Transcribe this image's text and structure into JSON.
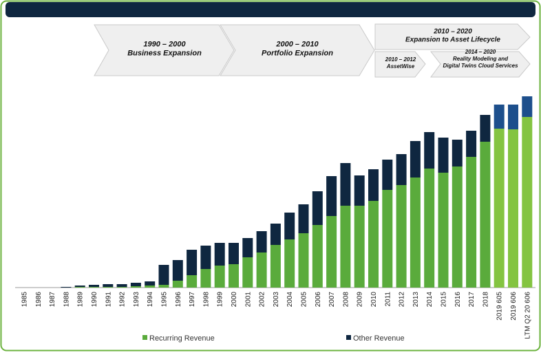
{
  "chart_data": {
    "type": "stacked-bar",
    "categories": [
      "1985",
      "1986",
      "1987",
      "1988",
      "1989",
      "1990",
      "1991",
      "1992",
      "1993",
      "1994",
      "1995",
      "1996",
      "1997",
      "1998",
      "1999",
      "2000",
      "2001",
      "2002",
      "2003",
      "2004",
      "2005",
      "2006",
      "2007",
      "2008",
      "2009",
      "2010",
      "2011",
      "2012",
      "2013",
      "2014",
      "2015",
      "2016",
      "2017",
      "2018",
      "2019 605",
      "2019 606",
      "LTM Q2 20 606"
    ],
    "ylim": [
      0,
      290
    ],
    "series": [
      {
        "name": "Recurring Revenue",
        "color": "#5aab3c",
        "colors": [
          "#5aab3c",
          "#5aab3c",
          "#5aab3c",
          "#5aab3c",
          "#5aab3c",
          "#5aab3c",
          "#5aab3c",
          "#5aab3c",
          "#5aab3c",
          "#5aab3c",
          "#5aab3c",
          "#5aab3c",
          "#5aab3c",
          "#5aab3c",
          "#5aab3c",
          "#5aab3c",
          "#5aab3c",
          "#5aab3c",
          "#5aab3c",
          "#5aab3c",
          "#5aab3c",
          "#5aab3c",
          "#5aab3c",
          "#5aab3c",
          "#5aab3c",
          "#5aab3c",
          "#5aab3c",
          "#5aab3c",
          "#5aab3c",
          "#5aab3c",
          "#5aab3c",
          "#5aab3c",
          "#5aab3c",
          "#5aab3c",
          "#84c441",
          "#84c441",
          "#84c441"
        ],
        "values": [
          0,
          0,
          0,
          0,
          1,
          1,
          1,
          1,
          2,
          3,
          4,
          10,
          18,
          27,
          32,
          34,
          44,
          51,
          62,
          70,
          79,
          91,
          104,
          119,
          119,
          126,
          142,
          149,
          160,
          173,
          167,
          176,
          190,
          212,
          231,
          230,
          248
        ]
      },
      {
        "name": "Other Revenue",
        "color": "#0f2740",
        "colors": [
          "#0f2740",
          "#0f2740",
          "#0f2740",
          "#0f2740",
          "#0f2740",
          "#0f2740",
          "#0f2740",
          "#0f2740",
          "#0f2740",
          "#0f2740",
          "#0f2740",
          "#0f2740",
          "#0f2740",
          "#0f2740",
          "#0f2740",
          "#0f2740",
          "#0f2740",
          "#0f2740",
          "#0f2740",
          "#0f2740",
          "#0f2740",
          "#0f2740",
          "#0f2740",
          "#0f2740",
          "#0f2740",
          "#0f2740",
          "#0f2740",
          "#0f2740",
          "#0f2740",
          "#0f2740",
          "#0f2740",
          "#0f2740",
          "#0f2740",
          "#0f2740",
          "#1d4f8c",
          "#1d4f8c",
          "#1d4f8c"
        ],
        "values": [
          0,
          0,
          0,
          1,
          2,
          3,
          4,
          4,
          5,
          6,
          29,
          30,
          37,
          34,
          33,
          31,
          28,
          31,
          31,
          39,
          42,
          49,
          58,
          62,
          44,
          46,
          44,
          45,
          53,
          53,
          51,
          39,
          38,
          39,
          35,
          36,
          30
        ]
      }
    ],
    "phases": [
      {
        "lines": [
          "1990 – 2000",
          "Business Expansion"
        ]
      },
      {
        "lines": [
          "2000 – 2010",
          "Portfolio Expansion"
        ]
      },
      {
        "lines": [
          "2010 – 2020",
          "Expansion to Asset Lifecycle"
        ]
      },
      {
        "lines": [
          "2010 – 2012",
          "AssetWise"
        ]
      },
      {
        "lines": [
          "2014 – 2020",
          "Reality Modeling and",
          "Digital Twins Cloud Services"
        ]
      }
    ]
  }
}
